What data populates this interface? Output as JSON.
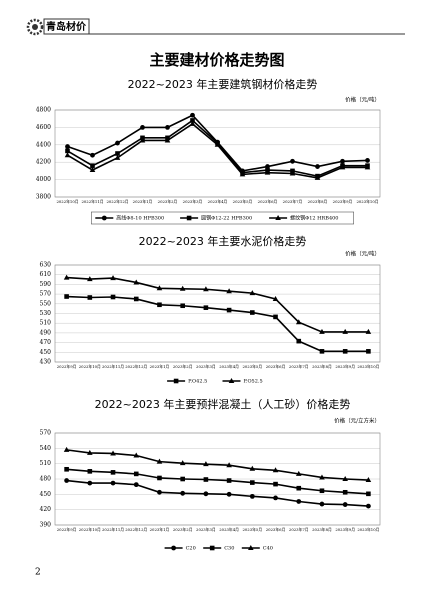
{
  "header": {
    "title": "青岛材价"
  },
  "page_title": "主要建材价格走势图",
  "page_number": "2",
  "chart_data": [
    {
      "type": "line",
      "title": "2022~2023 年主要建筑钢材价格走势",
      "y_label": "价格（元/吨）",
      "categories": [
        "2022年10月",
        "2022年11月",
        "2022年12月",
        "2023年1月",
        "2023年2月",
        "2023年3月",
        "2023年4月",
        "2023年5月",
        "2023年6月",
        "2023年7月",
        "2023年8月",
        "2023年9月",
        "2023年10月"
      ],
      "series": [
        {
          "name": "高线Φ8-10 HPB300",
          "color": "#000000",
          "marker": "circle",
          "values": [
            4380,
            4280,
            4420,
            4600,
            4600,
            4740,
            4430,
            4100,
            4150,
            4210,
            4150,
            4210,
            4220
          ]
        },
        {
          "name": "圆钢Φ12-22 HPB300",
          "color": "#000000",
          "marker": "square",
          "values": [
            4330,
            4160,
            4300,
            4480,
            4480,
            4680,
            4420,
            4080,
            4110,
            4100,
            4040,
            4160,
            4160
          ]
        },
        {
          "name": "螺纹钢Φ12 HRB400",
          "color": "#000000",
          "marker": "triangle",
          "values": [
            4280,
            4110,
            4250,
            4450,
            4450,
            4640,
            4400,
            4060,
            4080,
            4070,
            4020,
            4140,
            4140
          ]
        }
      ],
      "ylim": [
        3800,
        4800
      ],
      "yticks": [
        3800,
        4000,
        4200,
        4400,
        4600,
        4800
      ],
      "grid": true,
      "legend": "bottom"
    },
    {
      "type": "line",
      "title": "2022~2023 年主要水泥价格走势",
      "y_label": "价格（元/吨）",
      "categories": [
        "2022年9月",
        "2022年10月",
        "2022年11月",
        "2022年12月",
        "2023年1月",
        "2023年2月",
        "2023年3月",
        "2023年4月",
        "2023年5月",
        "2023年6月",
        "2023年7月",
        "2023年8月",
        "2023年9月",
        "2023年10月"
      ],
      "series": [
        {
          "name": "P.O42.5",
          "color": "#000000",
          "marker": "square",
          "values": [
            565,
            563,
            564,
            560,
            548,
            546,
            542,
            537,
            532,
            523,
            473,
            452,
            452,
            452
          ]
        },
        {
          "name": "P.O52.5",
          "color": "#000000",
          "marker": "triangle",
          "values": [
            604,
            601,
            603,
            594,
            582,
            581,
            580,
            576,
            572,
            560,
            512,
            492,
            492,
            492
          ]
        }
      ],
      "ylim": [
        430,
        630
      ],
      "yticks": [
        430,
        450,
        470,
        490,
        510,
        530,
        550,
        570,
        590,
        610,
        630
      ],
      "grid": true,
      "legend": "bottom"
    },
    {
      "type": "line",
      "title": "2022~2023 年主要预拌混凝土（人工砂）价格走势",
      "y_label": "价格（元/立方米）",
      "categories": [
        "2022年9月",
        "2022年10月",
        "2022年11月",
        "2022年12月",
        "2023年1月",
        "2023年2月",
        "2023年3月",
        "2023年4月",
        "2023年5月",
        "2023年6月",
        "2023年7月",
        "2023年8月",
        "2023年9月",
        "2023年10月"
      ],
      "series": [
        {
          "name": "C20",
          "color": "#000000",
          "marker": "circle",
          "values": [
            477,
            472,
            472,
            469,
            454,
            452,
            451,
            450,
            446,
            443,
            436,
            431,
            430,
            427
          ]
        },
        {
          "name": "C30",
          "color": "#000000",
          "marker": "square",
          "values": [
            499,
            495,
            493,
            490,
            482,
            480,
            479,
            477,
            473,
            470,
            462,
            457,
            454,
            451
          ]
        },
        {
          "name": "C40",
          "color": "#000000",
          "marker": "triangle",
          "values": [
            537,
            531,
            530,
            526,
            514,
            511,
            509,
            507,
            500,
            497,
            490,
            483,
            480,
            478
          ]
        }
      ],
      "ylim": [
        390,
        570
      ],
      "yticks": [
        390,
        420,
        450,
        480,
        510,
        540,
        570
      ],
      "grid": true,
      "legend": "bottom"
    }
  ]
}
